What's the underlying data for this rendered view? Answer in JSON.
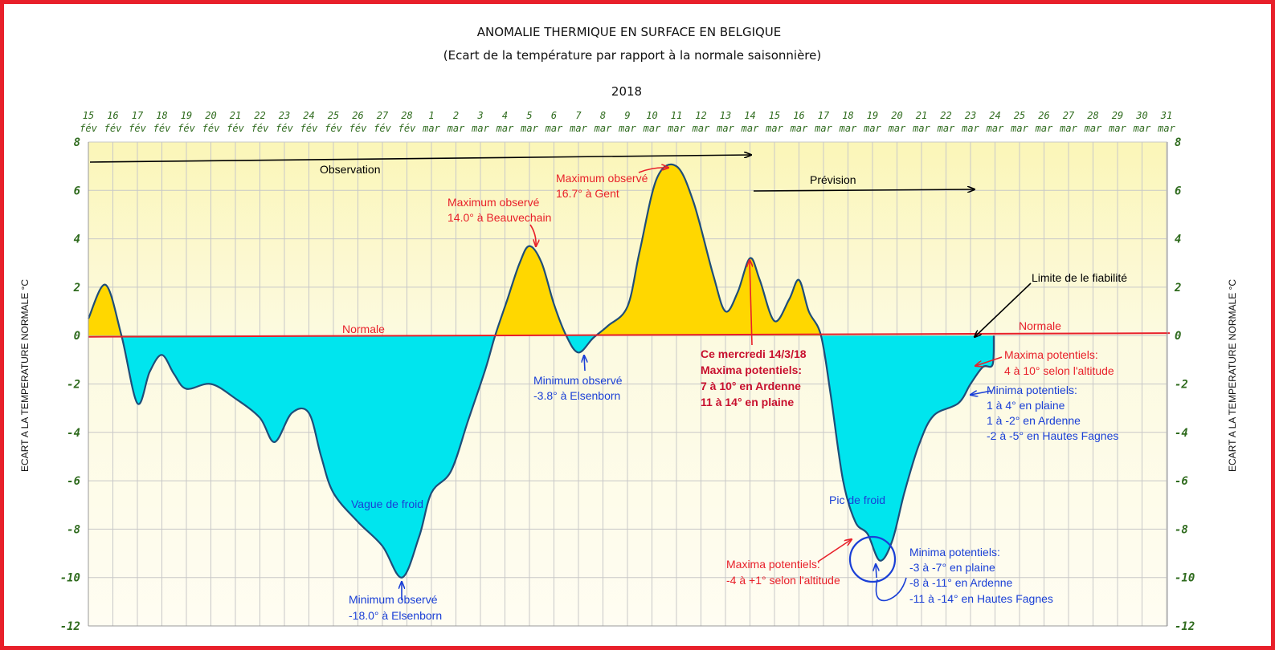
{
  "chart_data": {
    "type": "area",
    "title": "ANOMALIE THERMIQUE EN SURFACE EN BELGIQUE",
    "subtitle": "(Ecart de la température par rapport à la normale saisonnière)",
    "year": "2018",
    "ylabel": "ECART A LA TEMPERATURE NORMALE  °C",
    "ylabel_right": "ECART A LA TEMPERATURE NORMALE  °C",
    "ylim": [
      -12,
      8
    ],
    "yticks": [
      8,
      6,
      4,
      2,
      0,
      -2,
      -4,
      -6,
      -8,
      -10,
      -12
    ],
    "x_ticks": [
      {
        "day": "15",
        "month": "fév"
      },
      {
        "day": "16",
        "month": "fév"
      },
      {
        "day": "17",
        "month": "fév"
      },
      {
        "day": "18",
        "month": "fév"
      },
      {
        "day": "19",
        "month": "fév"
      },
      {
        "day": "20",
        "month": "fév"
      },
      {
        "day": "21",
        "month": "fév"
      },
      {
        "day": "22",
        "month": "fév"
      },
      {
        "day": "23",
        "month": "fév"
      },
      {
        "day": "24",
        "month": "fév"
      },
      {
        "day": "25",
        "month": "fév"
      },
      {
        "day": "26",
        "month": "fév"
      },
      {
        "day": "27",
        "month": "fév"
      },
      {
        "day": "28",
        "month": "fév"
      },
      {
        "day": "1",
        "month": "mar"
      },
      {
        "day": "2",
        "month": "mar"
      },
      {
        "day": "3",
        "month": "mar"
      },
      {
        "day": "4",
        "month": "mar"
      },
      {
        "day": "5",
        "month": "mar"
      },
      {
        "day": "6",
        "month": "mar"
      },
      {
        "day": "7",
        "month": "mar"
      },
      {
        "day": "8",
        "month": "mar"
      },
      {
        "day": "9",
        "month": "mar"
      },
      {
        "day": "10",
        "month": "mar"
      },
      {
        "day": "11",
        "month": "mar"
      },
      {
        "day": "12",
        "month": "mar"
      },
      {
        "day": "13",
        "month": "mar"
      },
      {
        "day": "14",
        "month": "mar"
      },
      {
        "day": "15",
        "month": "mar"
      },
      {
        "day": "16",
        "month": "mar"
      },
      {
        "day": "17",
        "month": "mar"
      },
      {
        "day": "18",
        "month": "mar"
      },
      {
        "day": "19",
        "month": "mar"
      },
      {
        "day": "20",
        "month": "mar"
      },
      {
        "day": "21",
        "month": "mar"
      },
      {
        "day": "22",
        "month": "mar"
      },
      {
        "day": "23",
        "month": "mar"
      },
      {
        "day": "24",
        "month": "mar"
      },
      {
        "day": "25",
        "month": "mar"
      },
      {
        "day": "26",
        "month": "mar"
      },
      {
        "day": "27",
        "month": "mar"
      },
      {
        "day": "28",
        "month": "mar"
      },
      {
        "day": "29",
        "month": "mar"
      },
      {
        "day": "30",
        "month": "mar"
      },
      {
        "day": "31",
        "month": "mar"
      }
    ],
    "series": [
      {
        "points": [
          [
            0,
            0.7
          ],
          [
            0.7,
            2.1
          ],
          [
            1.35,
            0
          ],
          [
            2.0,
            -2.8
          ],
          [
            2.5,
            -1.5
          ],
          [
            3.0,
            -0.8
          ],
          [
            3.5,
            -1.6
          ],
          [
            4.0,
            -2.2
          ],
          [
            5.0,
            -2.0
          ],
          [
            6.0,
            -2.6
          ],
          [
            7.0,
            -3.4
          ],
          [
            7.6,
            -4.4
          ],
          [
            8.3,
            -3.2
          ],
          [
            9.0,
            -3.2
          ],
          [
            9.5,
            -5.0
          ],
          [
            10.0,
            -6.5
          ],
          [
            11.0,
            -7.7
          ],
          [
            12.0,
            -8.7
          ],
          [
            12.8,
            -10.0
          ],
          [
            13.5,
            -8.3
          ],
          [
            14.0,
            -6.5
          ],
          [
            14.8,
            -5.6
          ],
          [
            15.5,
            -3.5
          ],
          [
            16.2,
            -1.4
          ],
          [
            16.6,
            0
          ],
          [
            17.1,
            1.5
          ],
          [
            17.6,
            3.0
          ],
          [
            18.0,
            3.7
          ],
          [
            18.5,
            3.0
          ],
          [
            19.0,
            1.3
          ],
          [
            19.5,
            0
          ],
          [
            20.0,
            -0.7
          ],
          [
            20.6,
            -0.1
          ],
          [
            21.2,
            0.4
          ],
          [
            22.0,
            1.2
          ],
          [
            22.5,
            3.5
          ],
          [
            23.2,
            6.5
          ],
          [
            24.0,
            7.0
          ],
          [
            24.7,
            5.5
          ],
          [
            25.5,
            2.5
          ],
          [
            26.0,
            1.0
          ],
          [
            26.5,
            1.8
          ],
          [
            27.0,
            3.2
          ],
          [
            27.4,
            2.3
          ],
          [
            28.0,
            0.6
          ],
          [
            28.6,
            1.5
          ],
          [
            29.0,
            2.3
          ],
          [
            29.4,
            1.0
          ],
          [
            29.9,
            0
          ],
          [
            30.3,
            -2.5
          ],
          [
            30.8,
            -6.0
          ],
          [
            31.3,
            -7.7
          ],
          [
            31.8,
            -8.2
          ],
          [
            32.3,
            -9.3
          ],
          [
            32.8,
            -8.5
          ],
          [
            33.3,
            -6.5
          ],
          [
            33.9,
            -4.5
          ],
          [
            34.5,
            -3.3
          ],
          [
            35.5,
            -2.8
          ],
          [
            36.0,
            -2.0
          ],
          [
            36.5,
            -1.3
          ],
          [
            36.9,
            -1.2
          ],
          [
            36.95,
            0
          ]
        ]
      }
    ],
    "annotations": [
      {
        "text": "Observation"
      },
      {
        "text": "Prévision"
      },
      {
        "text": "Normale"
      },
      {
        "text": "Normale"
      },
      {
        "text": "Maximum observé"
      },
      {
        "text": "14.0° à Beauvechain"
      },
      {
        "text": "Maximum observé"
      },
      {
        "text": "16.7° à Gent"
      },
      {
        "text": "Minimum observé"
      },
      {
        "text": "-3.8° à Elsenborn"
      },
      {
        "text": "Vague de froid"
      },
      {
        "text": "Minimum  observé"
      },
      {
        "text": "-18.0° à Elsenborn"
      },
      {
        "text": "Ce mercredi 14/3/18"
      },
      {
        "text": "Maxima potentiels:"
      },
      {
        "text": "7 à 10° en Ardenne"
      },
      {
        "text": "11 à 14° en plaine"
      },
      {
        "text": "Limite de le fiabilité"
      },
      {
        "text": "Maxima potentiels:"
      },
      {
        "text": "4 à 10° selon l'altitude"
      },
      {
        "text": "Minima potentiels:"
      },
      {
        "text": "1 à 4° en plaine"
      },
      {
        "text": "1 à -2° en Ardenne"
      },
      {
        "text": "-2 à -5° en Hautes Fagnes"
      },
      {
        "text": "Pic de froid"
      },
      {
        "text": "Maxima potentiels:"
      },
      {
        "text": "-4 à +1° selon l'altitude"
      },
      {
        "text": "Minima potentiels:"
      },
      {
        "text": "-3 à -7° en plaine"
      },
      {
        "text": "-8 à -11° en Ardenne"
      },
      {
        "text": "-11 à -14° en Hautes Fagnes"
      }
    ],
    "colors": {
      "above_normal": "#ffd700",
      "below_normal": "#00e5ee",
      "curve": "#1f4e79",
      "normal_line": "#e8202a",
      "frame": "#e8202a",
      "tick_labels": "#2f6b1e",
      "annotation_red": "#e8202a",
      "annotation_blue": "#1a3fd6",
      "annotation_black": "#000000"
    }
  }
}
